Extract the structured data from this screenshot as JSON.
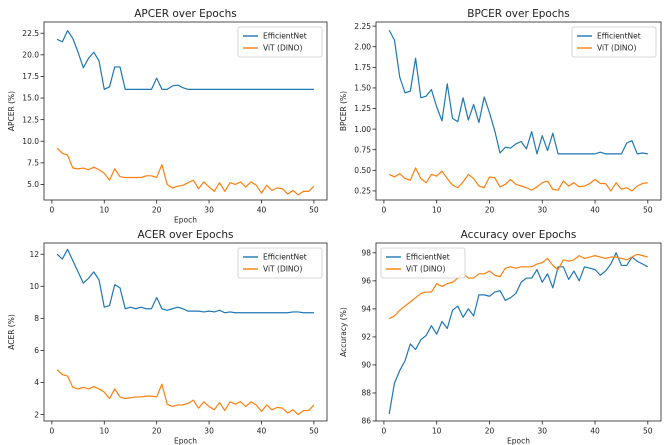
{
  "chart_data": [
    {
      "type": "line",
      "title": "APCER over Epochs",
      "xlabel": "Epoch",
      "ylabel": "APCER (%)",
      "xlim": [
        -1.5,
        52.5
      ],
      "ylim": [
        3.2,
        23.8
      ],
      "xticks": [
        0,
        10,
        20,
        30,
        40,
        50
      ],
      "yticks": [
        5.0,
        7.5,
        10.0,
        12.5,
        15.0,
        17.5,
        20.0,
        22.5
      ],
      "ytick_labels": [
        "5.0",
        "7.5",
        "10.0",
        "12.5",
        "15.0",
        "17.5",
        "20.0",
        "22.5"
      ],
      "legend_position": "top-right",
      "x": [
        1,
        2,
        3,
        4,
        5,
        6,
        7,
        8,
        9,
        10,
        11,
        12,
        13,
        14,
        15,
        16,
        17,
        18,
        19,
        20,
        21,
        22,
        23,
        24,
        25,
        26,
        27,
        28,
        29,
        30,
        31,
        32,
        33,
        34,
        35,
        36,
        37,
        38,
        39,
        40,
        41,
        42,
        43,
        44,
        45,
        46,
        47,
        48,
        49,
        50
      ],
      "series": [
        {
          "name": "EfficientNet",
          "color": "#1f77b4",
          "values": [
            21.8,
            21.5,
            22.8,
            21.9,
            20.3,
            18.5,
            19.6,
            20.3,
            19.3,
            16.0,
            16.3,
            18.6,
            18.6,
            16.0,
            16.0,
            16.0,
            16.0,
            16.0,
            16.0,
            17.3,
            16.0,
            16.0,
            16.4,
            16.5,
            16.2,
            16.0,
            16.0,
            16.0,
            16.0,
            16.0,
            16.0,
            16.0,
            16.0,
            16.0,
            16.0,
            16.0,
            16.0,
            16.0,
            16.0,
            16.0,
            16.0,
            16.0,
            16.0,
            16.0,
            16.0,
            16.0,
            16.0,
            16.0,
            16.0,
            16.0
          ]
        },
        {
          "name": "ViT (DINO)",
          "color": "#ff7f0e",
          "values": [
            9.2,
            8.6,
            8.4,
            6.9,
            6.8,
            6.9,
            6.7,
            7.0,
            6.7,
            6.3,
            5.5,
            6.8,
            5.9,
            5.8,
            5.8,
            5.8,
            5.8,
            6.0,
            6.0,
            5.8,
            7.3,
            5.0,
            4.6,
            4.8,
            4.9,
            5.2,
            5.5,
            4.5,
            5.3,
            4.7,
            4.2,
            5.2,
            4.2,
            5.2,
            5.0,
            5.3,
            4.7,
            5.3,
            4.9,
            4.0,
            4.9,
            4.3,
            4.6,
            4.5,
            3.9,
            4.3,
            3.8,
            4.2,
            4.2,
            4.8
          ]
        }
      ]
    },
    {
      "type": "line",
      "title": "BPCER over Epochs",
      "xlabel": "",
      "ylabel": "BPCER (%)",
      "xlim": [
        -1.5,
        52.5
      ],
      "ylim": [
        0.14,
        2.3
      ],
      "xticks": [
        0,
        10,
        20,
        30,
        40,
        50
      ],
      "yticks": [
        0.25,
        0.5,
        0.75,
        1.0,
        1.25,
        1.5,
        1.75,
        2.0,
        2.25
      ],
      "ytick_labels": [
        "0.25",
        "0.50",
        "0.75",
        "1.00",
        "1.25",
        "1.50",
        "1.75",
        "2.00",
        "2.25"
      ],
      "legend_position": "top-right",
      "x": [
        1,
        2,
        3,
        4,
        5,
        6,
        7,
        8,
        9,
        10,
        11,
        12,
        13,
        14,
        15,
        16,
        17,
        18,
        19,
        20,
        21,
        22,
        23,
        24,
        25,
        26,
        27,
        28,
        29,
        30,
        31,
        32,
        33,
        34,
        35,
        36,
        37,
        38,
        39,
        40,
        41,
        42,
        43,
        44,
        45,
        46,
        47,
        48,
        49,
        50
      ],
      "series": [
        {
          "name": "EfficientNet",
          "color": "#1f77b4",
          "values": [
            2.2,
            2.08,
            1.63,
            1.44,
            1.46,
            1.86,
            1.38,
            1.4,
            1.48,
            1.27,
            1.1,
            1.55,
            1.13,
            1.09,
            1.38,
            1.11,
            1.3,
            1.08,
            1.39,
            1.2,
            0.98,
            0.71,
            0.78,
            0.77,
            0.82,
            0.85,
            0.76,
            0.97,
            0.7,
            0.92,
            0.74,
            0.95,
            0.7,
            0.7,
            0.7,
            0.7,
            0.7,
            0.7,
            0.7,
            0.7,
            0.72,
            0.7,
            0.7,
            0.7,
            0.7,
            0.83,
            0.86,
            0.7,
            0.71,
            0.7
          ]
        },
        {
          "name": "ViT (DINO)",
          "color": "#ff7f0e",
          "values": [
            0.45,
            0.42,
            0.46,
            0.4,
            0.38,
            0.53,
            0.4,
            0.35,
            0.45,
            0.43,
            0.49,
            0.4,
            0.32,
            0.29,
            0.36,
            0.45,
            0.4,
            0.31,
            0.29,
            0.42,
            0.41,
            0.3,
            0.33,
            0.39,
            0.33,
            0.31,
            0.29,
            0.26,
            0.3,
            0.35,
            0.37,
            0.27,
            0.26,
            0.37,
            0.31,
            0.35,
            0.3,
            0.31,
            0.34,
            0.39,
            0.34,
            0.34,
            0.25,
            0.35,
            0.27,
            0.29,
            0.25,
            0.31,
            0.34,
            0.35
          ]
        }
      ]
    },
    {
      "type": "line",
      "title": "ACER over Epochs",
      "xlabel": "Epoch",
      "ylabel": "ACER (%)",
      "xlim": [
        -1.5,
        52.5
      ],
      "ylim": [
        1.6,
        12.7
      ],
      "xticks": [
        0,
        10,
        20,
        30,
        40,
        50
      ],
      "yticks": [
        2,
        4,
        6,
        8,
        10,
        12
      ],
      "ytick_labels": [
        "2",
        "4",
        "6",
        "8",
        "10",
        "12"
      ],
      "legend_position": "top-right",
      "x": [
        1,
        2,
        3,
        4,
        5,
        6,
        7,
        8,
        9,
        10,
        11,
        12,
        13,
        14,
        15,
        16,
        17,
        18,
        19,
        20,
        21,
        22,
        23,
        24,
        25,
        26,
        27,
        28,
        29,
        30,
        31,
        32,
        33,
        34,
        35,
        36,
        37,
        38,
        39,
        40,
        41,
        42,
        43,
        44,
        45,
        46,
        47,
        48,
        49,
        50
      ],
      "series": [
        {
          "name": "EfficientNet",
          "color": "#1f77b4",
          "values": [
            12.0,
            11.7,
            12.3,
            11.6,
            10.9,
            10.2,
            10.5,
            10.9,
            10.4,
            8.7,
            8.8,
            10.1,
            9.9,
            8.6,
            8.7,
            8.6,
            8.7,
            8.6,
            8.6,
            9.3,
            8.6,
            8.5,
            8.6,
            8.7,
            8.6,
            8.45,
            8.45,
            8.45,
            8.4,
            8.45,
            8.4,
            8.5,
            8.35,
            8.4,
            8.35,
            8.35,
            8.35,
            8.35,
            8.35,
            8.35,
            8.35,
            8.35,
            8.35,
            8.35,
            8.35,
            8.4,
            8.4,
            8.35,
            8.35,
            8.35
          ]
        },
        {
          "name": "ViT (DINO)",
          "color": "#ff7f0e",
          "values": [
            4.8,
            4.5,
            4.4,
            3.7,
            3.6,
            3.7,
            3.6,
            3.75,
            3.6,
            3.4,
            3.0,
            3.6,
            3.1,
            3.0,
            3.05,
            3.1,
            3.1,
            3.15,
            3.15,
            3.1,
            3.9,
            2.65,
            2.5,
            2.6,
            2.6,
            2.7,
            2.9,
            2.4,
            2.8,
            2.5,
            2.3,
            2.75,
            2.25,
            2.8,
            2.65,
            2.8,
            2.5,
            2.8,
            2.6,
            2.2,
            2.6,
            2.3,
            2.45,
            2.4,
            2.1,
            2.3,
            2.0,
            2.25,
            2.25,
            2.6
          ]
        }
      ]
    },
    {
      "type": "line",
      "title": "Accuracy over Epochs",
      "xlabel": "Epoch",
      "ylabel": "Accuracy (%)",
      "xlim": [
        -1.5,
        52.5
      ],
      "ylim": [
        86.0,
        98.7
      ],
      "xticks": [
        0,
        10,
        20,
        30,
        40,
        50
      ],
      "yticks": [
        86,
        88,
        90,
        92,
        94,
        96,
        98
      ],
      "ytick_labels": [
        "86",
        "88",
        "90",
        "92",
        "94",
        "96",
        "98"
      ],
      "legend_position": "top-left",
      "x": [
        1,
        2,
        3,
        4,
        5,
        6,
        7,
        8,
        9,
        10,
        11,
        12,
        13,
        14,
        15,
        16,
        17,
        18,
        19,
        20,
        21,
        22,
        23,
        24,
        25,
        26,
        27,
        28,
        29,
        30,
        31,
        32,
        33,
        34,
        35,
        36,
        37,
        38,
        39,
        40,
        41,
        42,
        43,
        44,
        45,
        46,
        47,
        48,
        49,
        50
      ],
      "series": [
        {
          "name": "EfficientNet",
          "color": "#1f77b4",
          "values": [
            86.5,
            88.7,
            89.6,
            90.3,
            91.5,
            91.1,
            91.8,
            92.1,
            92.8,
            92.2,
            93.1,
            92.6,
            93.9,
            94.2,
            93.4,
            94.0,
            93.5,
            95.0,
            95.0,
            94.9,
            95.2,
            95.3,
            94.6,
            94.8,
            95.1,
            95.9,
            96.2,
            96.2,
            96.8,
            95.9,
            96.5,
            95.5,
            97.0,
            97.0,
            96.1,
            96.7,
            96.0,
            97.0,
            96.9,
            96.8,
            96.4,
            96.7,
            97.2,
            98.0,
            97.1,
            97.1,
            97.7,
            97.4,
            97.2,
            97.0
          ]
        },
        {
          "name": "ViT (DINO)",
          "color": "#ff7f0e",
          "values": [
            93.3,
            93.5,
            93.9,
            94.2,
            94.5,
            94.8,
            95.1,
            95.2,
            95.2,
            95.8,
            95.6,
            95.8,
            95.9,
            96.2,
            96.5,
            96.2,
            96.2,
            96.5,
            96.5,
            96.7,
            96.4,
            96.3,
            96.9,
            97.0,
            96.9,
            97.0,
            97.0,
            97.0,
            97.2,
            97.3,
            97.6,
            97.1,
            96.8,
            97.5,
            97.4,
            97.5,
            97.8,
            97.6,
            97.7,
            97.8,
            97.7,
            97.6,
            97.7,
            97.7,
            97.6,
            97.5,
            97.7,
            97.9,
            97.8,
            97.7
          ]
        }
      ]
    }
  ]
}
